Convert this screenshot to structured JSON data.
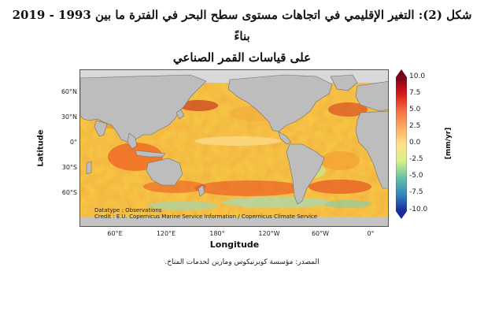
{
  "title": {
    "line1": "شكل (2): التغير الإقليمي في اتجاهات مستوى سطح البحر في الفترة ما بين 1993 - 2019 بناءً",
    "line2": "على قياسات القمر الصناعي"
  },
  "map": {
    "xlabel": "Longitude",
    "ylabel": "Latitude",
    "lat_ticks": [
      "60°N",
      "30°N",
      "0°",
      "30°S",
      "60°S"
    ],
    "lon_ticks": [
      "60°E",
      "120°E",
      "180°",
      "120°W",
      "60°W",
      "0°"
    ],
    "datatype": "Datatype : Observations",
    "credit": "Credit : E.U. Copernicus Marine Service Information / Copernicus Climate Service",
    "colors": {
      "land": "#bdbdbd",
      "ice": "#dcdcdc",
      "coast": "#6e6e6e"
    }
  },
  "colorbar": {
    "label": "[mm/yr]",
    "ticks": [
      "10.0",
      "7.5",
      "5.0",
      "2.5",
      "0.0",
      "-2.5",
      "-5.0",
      "-7.5",
      "-10.0"
    ],
    "colors": [
      "#7a0018",
      "#d7191c",
      "#f46d43",
      "#fdae61",
      "#fee08b",
      "#d9ef8b",
      "#66c2a5",
      "#3288bd",
      "#1a2a9c"
    ]
  },
  "source": "المصدر: مؤسسة كوبرنيكوس ومارين لخدمات المناخ."
}
